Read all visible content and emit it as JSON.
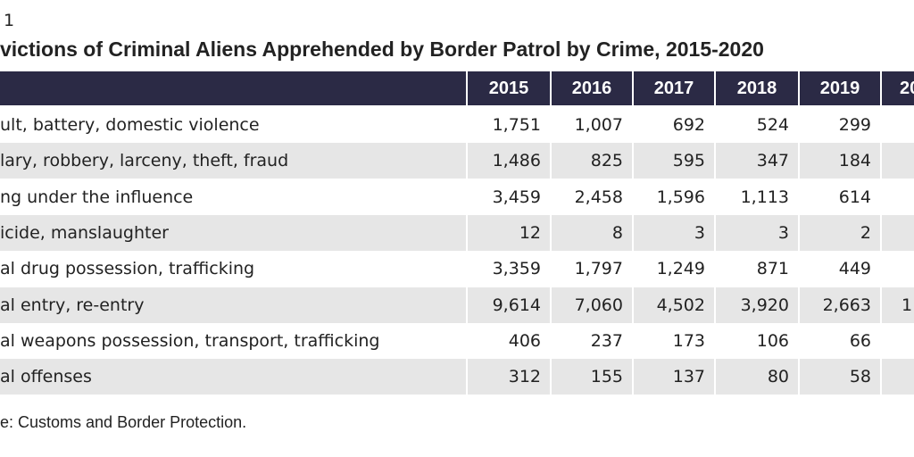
{
  "header": {
    "label": "1",
    "title": "victions of Criminal Aliens Apprehended by Border Patrol by Crime, 2015-2020"
  },
  "table": {
    "columns": [
      "2015",
      "2016",
      "2017",
      "2018",
      "2019"
    ],
    "rows": [
      [
        "ult, battery, domestic violence",
        "1,751",
        "1,007",
        "692",
        "524",
        "299"
      ],
      [
        "lary, robbery, larceny, theft, fraud",
        "1,486",
        "825",
        "595",
        "347",
        "184"
      ],
      [
        "ng under the influence",
        "3,459",
        "2,458",
        "1,596",
        "1,113",
        "614"
      ],
      [
        "icide, manslaughter",
        "12",
        "8",
        "3",
        "3",
        "2"
      ],
      [
        "al drug possession, trafficking",
        "3,359",
        "1,797",
        "1,249",
        "871",
        "449"
      ],
      [
        "al entry, re-entry",
        "9,614",
        "7,060",
        "4,502",
        "3,920",
        "2,663"
      ],
      [
        "al weapons possession, transport, trafficking",
        "406",
        "237",
        "173",
        "106",
        "66"
      ],
      [
        "al offenses",
        "312",
        "155",
        "137",
        "80",
        "58"
      ]
    ],
    "cut_column": {
      "header": "20",
      "row_5": "1"
    }
  },
  "source": "e: Customs and Border Protection."
}
